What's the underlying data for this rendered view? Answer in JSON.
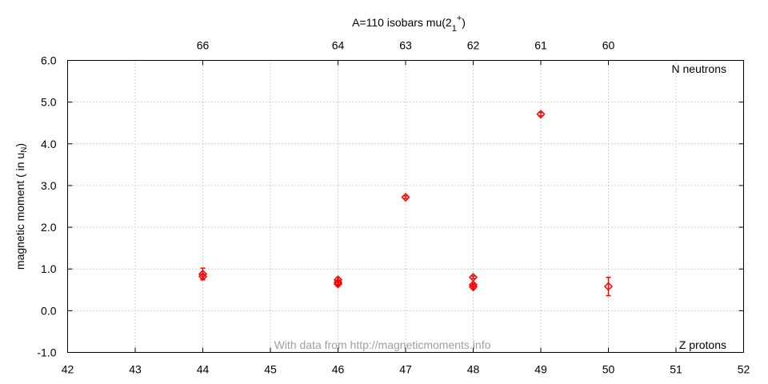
{
  "chart_data": {
    "type": "scatter",
    "title": "A=110 isobars mu(2",
    "title_sub": "1",
    "title_sup": "+",
    "title_end": ")",
    "ylabel": "magnetic moment ( in u",
    "ylabel_sub": "N",
    "ylabel_end": ")",
    "corner_top_right": "N neutrons",
    "corner_bottom_right": "Z protons",
    "watermark": "With data from http://magneticmoments.info",
    "xlim": [
      42,
      52
    ],
    "ylim": [
      -1.0,
      6.0
    ],
    "x_ticks": [
      "42",
      "43",
      "44",
      "45",
      "46",
      "47",
      "48",
      "49",
      "50",
      "51",
      "52"
    ],
    "y_ticks": [
      "-1.0",
      "0.0",
      "1.0",
      "2.0",
      "3.0",
      "4.0",
      "5.0",
      "6.0"
    ],
    "top_ticks": [
      {
        "z": 44,
        "label": "66"
      },
      {
        "z": 46,
        "label": "64"
      },
      {
        "z": 47,
        "label": "63"
      },
      {
        "z": 48,
        "label": "62"
      },
      {
        "z": 49,
        "label": "61"
      },
      {
        "z": 50,
        "label": "60"
      }
    ],
    "grid": true,
    "marker_color": "#ff0000",
    "points": [
      {
        "x": 44,
        "y": 0.88,
        "err": 0.14
      },
      {
        "x": 44,
        "y": 0.82,
        "err": 0.05
      },
      {
        "x": 46,
        "y": 0.74,
        "err": 0.05
      },
      {
        "x": 46,
        "y": 0.68,
        "err": 0.05
      },
      {
        "x": 46,
        "y": 0.64,
        "err": 0.05
      },
      {
        "x": 47,
        "y": 2.72,
        "err": 0.03
      },
      {
        "x": 48,
        "y": 0.8,
        "err": 0.03
      },
      {
        "x": 48,
        "y": 0.62,
        "err": 0.04
      },
      {
        "x": 48,
        "y": 0.57,
        "err": 0.05
      },
      {
        "x": 49,
        "y": 4.71,
        "err": 0.04
      },
      {
        "x": 50,
        "y": 0.58,
        "err": 0.22
      }
    ]
  }
}
